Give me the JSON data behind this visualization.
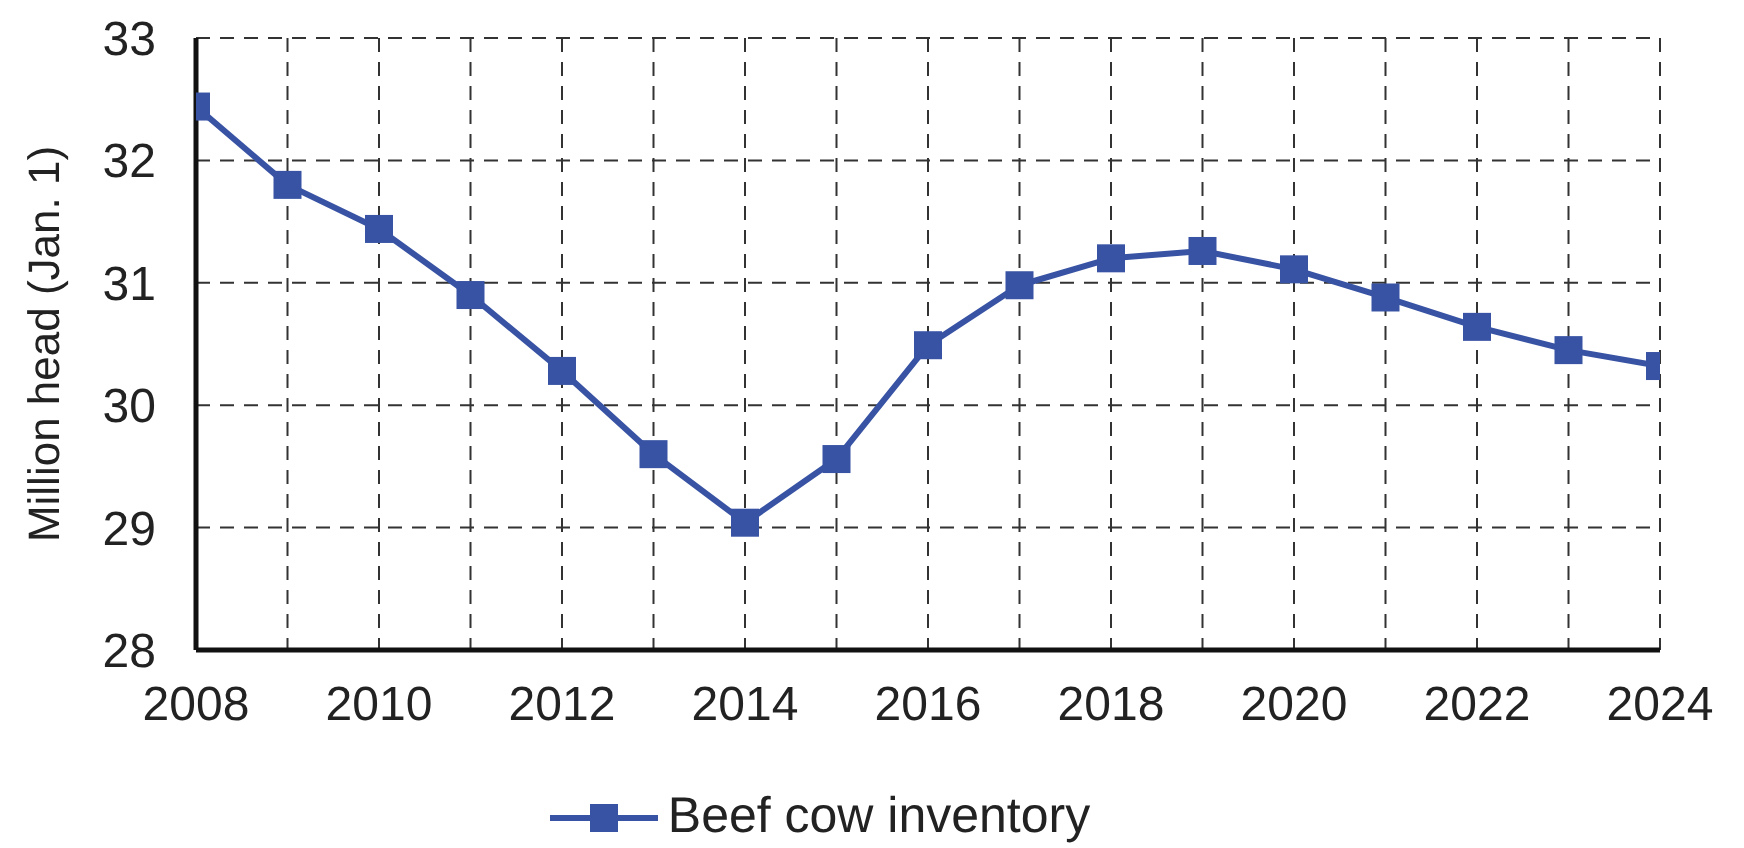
{
  "chart_data": {
    "type": "line",
    "x": [
      2008,
      2009,
      2010,
      2011,
      2012,
      2013,
      2014,
      2015,
      2016,
      2017,
      2018,
      2019,
      2020,
      2021,
      2022,
      2023,
      2024
    ],
    "series": [
      {
        "name": "Beef cow inventory",
        "color": "#3853a4",
        "values": [
          32.44,
          31.8,
          31.44,
          30.9,
          30.28,
          29.6,
          29.04,
          29.56,
          30.49,
          30.98,
          31.2,
          31.26,
          31.11,
          30.88,
          30.64,
          30.45,
          30.32
        ]
      }
    ],
    "xlim": [
      2008,
      2024
    ],
    "xticks": [
      2008,
      {
        "value": 2009,
        "label": null
      },
      2010,
      {
        "value": 2011,
        "label": null
      },
      2012,
      {
        "value": 2013,
        "label": null
      },
      2014,
      {
        "value": 2015,
        "label": null
      },
      2016,
      {
        "value": 2017,
        "label": null
      },
      2018,
      {
        "value": 2019,
        "label": null
      },
      2020,
      {
        "value": 2021,
        "label": null
      },
      2022,
      {
        "value": 2023,
        "label": null
      },
      2024
    ],
    "ylim": [
      28,
      33
    ],
    "yticks": [
      28,
      29,
      30,
      31,
      32,
      33
    ],
    "ylabel": "Million head (Jan. 1)",
    "grid": true,
    "legend": "bottom",
    "marker": "square",
    "line_style": "solid"
  }
}
